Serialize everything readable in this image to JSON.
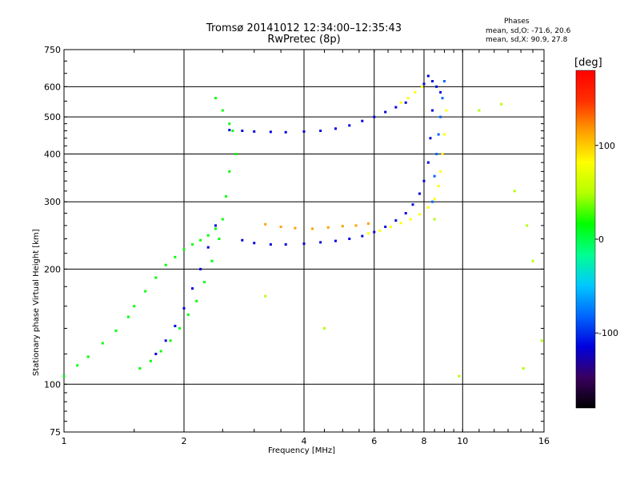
{
  "chart_data": {
    "type": "scatter",
    "title": "Tromsø 20141012 12:34:00–12:35:43",
    "subtitle": "RwPretec (8p)",
    "phase_header": "Phases",
    "phase_stats": [
      "mean, sd,O:  -71.6, 20.6",
      "mean, sd,X:   90.9, 27.8"
    ],
    "xlabel": "Frequency [MHz]",
    "ylabel": "Stationary phase Virtual Height [km]",
    "x_scale": "log",
    "y_scale": "log",
    "xlim": [
      1,
      16
    ],
    "ylim": [
      75,
      750
    ],
    "x_ticks": [
      1,
      2,
      4,
      6,
      8,
      10,
      16
    ],
    "y_ticks": [
      75,
      100,
      200,
      300,
      400,
      500,
      600,
      750
    ],
    "grid_x": [
      2,
      4,
      6,
      8,
      10
    ],
    "grid_y": [
      100,
      200,
      300,
      400,
      500,
      600
    ],
    "grid": true,
    "colorbar": {
      "label": "[deg]",
      "range": [
        -180,
        180
      ],
      "ticks": [
        100,
        0,
        -100
      ],
      "colors": [
        "#000000",
        "#3a0060",
        "#0000dd",
        "#0066ff",
        "#00c8ff",
        "#00ff90",
        "#00ff00",
        "#b4ff00",
        "#ffff00",
        "#ffa000",
        "#ff3000",
        "#ff0000"
      ]
    },
    "series": [
      {
        "x": [
          1.0,
          1.08,
          1.15,
          1.25,
          1.35,
          1.45,
          1.5,
          1.6,
          1.7,
          1.8,
          1.9,
          2.0,
          2.1,
          2.2,
          2.3,
          2.4
        ],
        "y": [
          105,
          112,
          118,
          128,
          138,
          150,
          160,
          175,
          190,
          205,
          215,
          225,
          232,
          238,
          245,
          255
        ],
        "phase": 5
      },
      {
        "x": [
          1.55,
          1.65,
          1.75,
          1.85,
          1.95,
          2.05,
          2.15,
          2.25,
          2.35,
          2.45,
          2.5,
          2.55,
          2.6,
          2.7
        ],
        "y": [
          110,
          115,
          122,
          130,
          140,
          152,
          165,
          185,
          210,
          240,
          270,
          310,
          360,
          400
        ],
        "phase": 10
      },
      {
        "x": [
          1.7,
          1.8,
          1.9,
          2.0,
          2.1,
          2.2,
          2.3,
          2.4
        ],
        "y": [
          120,
          130,
          142,
          158,
          178,
          200,
          228,
          260
        ],
        "phase": -110
      },
      {
        "x": [
          2.4,
          2.5,
          2.6,
          2.65
        ],
        "y": [
          560,
          520,
          480,
          460
        ],
        "phase": 5
      },
      {
        "x": [
          2.6,
          2.8,
          3.0,
          3.3,
          3.6,
          4.0,
          4.4,
          4.8,
          5.2,
          5.6,
          6.0,
          6.4,
          6.8,
          7.2
        ],
        "y": [
          462,
          460,
          458,
          457,
          456,
          458,
          460,
          466,
          475,
          488,
          500,
          515,
          530,
          545
        ],
        "phase": -100
      },
      {
        "x": [
          7.0,
          7.3,
          7.6,
          7.9
        ],
        "y": [
          545,
          560,
          580,
          600
        ],
        "phase": 90
      },
      {
        "x": [
          2.8,
          3.0,
          3.3,
          3.6,
          4.0,
          4.4,
          4.8,
          5.2,
          5.6,
          6.0,
          6.4,
          6.8,
          7.2,
          7.5,
          7.8,
          8.0,
          8.2,
          8.3,
          8.4
        ],
        "y": [
          238,
          234,
          232,
          232,
          233,
          235,
          237,
          240,
          244,
          250,
          258,
          268,
          280,
          295,
          315,
          340,
          380,
          440,
          520
        ],
        "phase": -110
      },
      {
        "x": [
          3.2,
          3.5,
          3.8,
          4.2,
          4.6,
          5.0,
          5.4,
          5.8
        ],
        "y": [
          262,
          258,
          256,
          255,
          257,
          259,
          260,
          263
        ],
        "phase": 120
      },
      {
        "x": [
          5.8,
          6.2,
          6.6,
          7.0,
          7.4,
          7.8,
          8.2,
          8.5,
          8.7,
          8.8,
          8.9,
          9.0,
          9.1
        ],
        "y": [
          248,
          252,
          258,
          264,
          270,
          278,
          290,
          305,
          330,
          360,
          400,
          450,
          520
        ],
        "phase": 95
      },
      {
        "x": [
          8.4,
          8.5,
          8.6,
          8.7,
          8.8,
          8.9,
          9.0
        ],
        "y": [
          300,
          350,
          400,
          450,
          500,
          560,
          620
        ],
        "phase": -90
      },
      {
        "x": [
          8.0,
          8.2,
          8.4,
          8.6,
          8.8
        ],
        "y": [
          610,
          640,
          620,
          600,
          580
        ],
        "phase": -100
      },
      {
        "x": [
          3.2,
          4.5,
          8.5,
          9.8,
          11.0,
          12.5,
          13.5,
          14.5,
          15.0,
          15.8,
          14.2
        ],
        "y": [
          170,
          140,
          270,
          105,
          520,
          540,
          320,
          260,
          210,
          130,
          110
        ],
        "phase": 60
      }
    ]
  }
}
